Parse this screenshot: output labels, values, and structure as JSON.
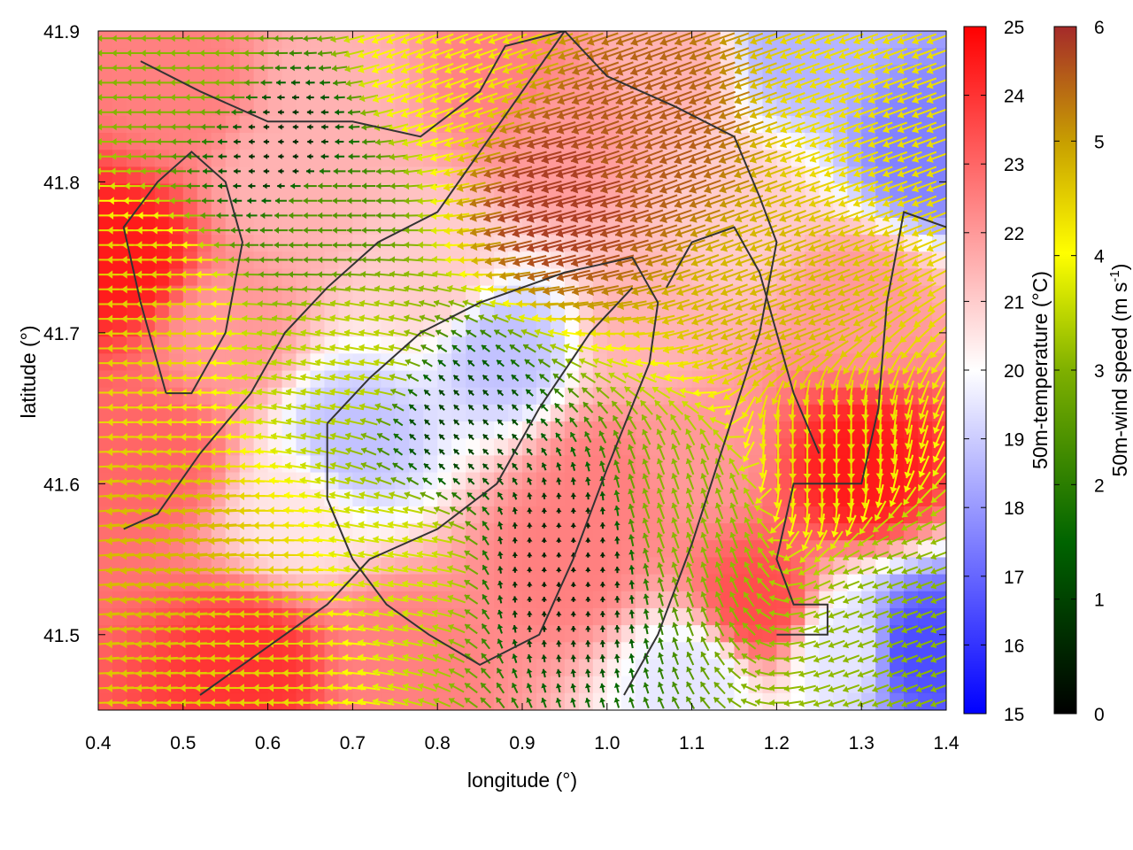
{
  "chart_data": {
    "type": "heatmap",
    "description_overlay": "wind vectors colored by speed, coastline contours",
    "xlabel": "longitude (°)",
    "ylabel": "latitude (°)",
    "xlim": [
      0.4,
      1.4
    ],
    "ylim": [
      41.45,
      41.9
    ],
    "x_ticks": [
      "0.4",
      "0.5",
      "0.6",
      "0.7",
      "0.8",
      "0.9",
      "1.0",
      "1.1",
      "1.2",
      "1.3",
      "1.4"
    ],
    "y_ticks": [
      "41.5",
      "41.6",
      "41.7",
      "41.8",
      "41.9"
    ],
    "x_tick_values": [
      0.4,
      0.5,
      0.6,
      0.7,
      0.8,
      0.9,
      1.0,
      1.1,
      1.2,
      1.3,
      1.4
    ],
    "y_tick_values": [
      41.5,
      41.6,
      41.7,
      41.8,
      41.9
    ],
    "grid": false,
    "temperature_colorbar": {
      "label": "50m-temperature (°C)",
      "range": [
        15,
        25
      ],
      "ticks": [
        "15",
        "16",
        "17",
        "18",
        "19",
        "20",
        "21",
        "22",
        "23",
        "24",
        "25"
      ],
      "tick_values": [
        15,
        16,
        17,
        18,
        19,
        20,
        21,
        22,
        23,
        24,
        25
      ],
      "colors": [
        "#0000ff",
        "#ffffff",
        "#ff0000"
      ]
    },
    "wind_colorbar": {
      "label_main": "50m-wind speed (m s",
      "label_sup": "-1",
      "label_end": ")",
      "range": [
        0,
        6
      ],
      "ticks": [
        "0",
        "1",
        "2",
        "3",
        "4",
        "5",
        "6"
      ],
      "tick_values": [
        0,
        1,
        2,
        3,
        4,
        5,
        6
      ],
      "colors": [
        "#000000",
        "#006400",
        "#7fb000",
        "#ffff00",
        "#c8a000",
        "#a52a2a"
      ]
    },
    "temperature_field_points": [
      {
        "lon": 0.43,
        "lat": 41.75,
        "t": 24.5
      },
      {
        "lon": 0.47,
        "lat": 41.62,
        "t": 23.0
      },
      {
        "lon": 0.62,
        "lat": 41.8,
        "t": 21.5
      },
      {
        "lon": 0.68,
        "lat": 41.86,
        "t": 21.5
      },
      {
        "lon": 0.88,
        "lat": 41.87,
        "t": 22.5
      },
      {
        "lon": 0.95,
        "lat": 41.83,
        "t": 22.0
      },
      {
        "lon": 1.08,
        "lat": 41.88,
        "t": 21.5
      },
      {
        "lon": 1.22,
        "lat": 41.89,
        "t": 18.5
      },
      {
        "lon": 1.38,
        "lat": 41.82,
        "t": 17.5
      },
      {
        "lon": 1.15,
        "lat": 41.78,
        "t": 21.0
      },
      {
        "lon": 0.8,
        "lat": 41.74,
        "t": 21.0
      },
      {
        "lon": 0.88,
        "lat": 41.69,
        "t": 18.8
      },
      {
        "lon": 0.7,
        "lat": 41.63,
        "t": 18.8
      },
      {
        "lon": 0.63,
        "lat": 41.58,
        "t": 20.5
      },
      {
        "lon": 0.95,
        "lat": 41.55,
        "t": 22.5
      },
      {
        "lon": 1.0,
        "lat": 41.6,
        "t": 22.5
      },
      {
        "lon": 1.1,
        "lat": 41.62,
        "t": 22.0
      },
      {
        "lon": 1.3,
        "lat": 41.61,
        "t": 24.5
      },
      {
        "lon": 1.18,
        "lat": 41.52,
        "t": 23.5
      },
      {
        "lon": 1.28,
        "lat": 41.49,
        "t": 19.5
      },
      {
        "lon": 1.37,
        "lat": 41.49,
        "t": 16.5
      },
      {
        "lon": 0.58,
        "lat": 41.48,
        "t": 24.0
      },
      {
        "lon": 0.75,
        "lat": 41.48,
        "t": 22.5
      },
      {
        "lon": 1.1,
        "lat": 41.47,
        "t": 19.5
      },
      {
        "lon": 1.3,
        "lat": 41.72,
        "t": 22.0
      },
      {
        "lon": 1.05,
        "lat": 41.7,
        "t": 21.5
      },
      {
        "lon": 0.55,
        "lat": 41.7,
        "t": 22.0
      },
      {
        "lon": 0.5,
        "lat": 41.86,
        "t": 22.5
      }
    ],
    "wind_field_points": [
      {
        "lon": 0.45,
        "lat": 41.72,
        "speed": 4.2,
        "dir_deg": 180
      },
      {
        "lon": 0.62,
        "lat": 41.82,
        "speed": 0.5,
        "dir_deg": 180
      },
      {
        "lon": 0.66,
        "lat": 41.78,
        "speed": 2.0,
        "dir_deg": 180
      },
      {
        "lon": 0.7,
        "lat": 41.68,
        "speed": 3.0,
        "dir_deg": 170
      },
      {
        "lon": 0.82,
        "lat": 41.64,
        "speed": 0.8,
        "dir_deg": 135
      },
      {
        "lon": 0.95,
        "lat": 41.55,
        "speed": 0.4,
        "dir_deg": 90
      },
      {
        "lon": 0.95,
        "lat": 41.79,
        "speed": 5.8,
        "dir_deg": 195
      },
      {
        "lon": 1.05,
        "lat": 41.83,
        "speed": 5.5,
        "dir_deg": 200
      },
      {
        "lon": 1.3,
        "lat": 41.85,
        "speed": 4.0,
        "dir_deg": 200
      },
      {
        "lon": 1.2,
        "lat": 41.72,
        "speed": 4.5,
        "dir_deg": 200
      },
      {
        "lon": 0.5,
        "lat": 41.55,
        "speed": 4.5,
        "dir_deg": 185
      },
      {
        "lon": 0.6,
        "lat": 41.52,
        "speed": 4.2,
        "dir_deg": 180
      },
      {
        "lon": 0.75,
        "lat": 41.55,
        "speed": 3.2,
        "dir_deg": 170
      },
      {
        "lon": 1.25,
        "lat": 41.62,
        "speed": 4.0,
        "dir_deg": 270
      },
      {
        "lon": 1.1,
        "lat": 41.58,
        "speed": 2.5,
        "dir_deg": 110
      },
      {
        "lon": 1.35,
        "lat": 41.52,
        "speed": 2.5,
        "dir_deg": 200
      },
      {
        "lon": 0.8,
        "lat": 41.88,
        "speed": 3.8,
        "dir_deg": 200
      },
      {
        "lon": 0.52,
        "lat": 41.88,
        "speed": 2.5,
        "dir_deg": 180
      }
    ],
    "contours": [
      [
        [
          0.67,
          41.64
        ],
        [
          0.72,
          41.67
        ],
        [
          0.78,
          41.7
        ],
        [
          0.85,
          41.72
        ],
        [
          0.95,
          41.74
        ],
        [
          1.03,
          41.75
        ],
        [
          1.06,
          41.72
        ],
        [
          1.05,
          41.68
        ],
        [
          1.0,
          41.61
        ],
        [
          0.96,
          41.55
        ],
        [
          0.92,
          41.5
        ],
        [
          0.85,
          41.48
        ],
        [
          0.79,
          41.5
        ],
        [
          0.74,
          41.52
        ],
        [
          0.7,
          41.55
        ],
        [
          0.67,
          41.59
        ],
        [
          0.67,
          41.64
        ]
      ],
      [
        [
          0.45,
          41.88
        ],
        [
          0.52,
          41.86
        ],
        [
          0.6,
          41.84
        ],
        [
          0.7,
          41.84
        ],
        [
          0.78,
          41.83
        ],
        [
          0.85,
          41.86
        ],
        [
          0.88,
          41.89
        ],
        [
          0.95,
          41.9
        ]
      ],
      [
        [
          0.95,
          41.9
        ],
        [
          1.0,
          41.87
        ],
        [
          1.08,
          41.85
        ],
        [
          1.15,
          41.83
        ],
        [
          1.18,
          41.79
        ],
        [
          1.2,
          41.76
        ],
        [
          1.18,
          41.7
        ],
        [
          1.14,
          41.63
        ],
        [
          1.1,
          41.56
        ],
        [
          1.06,
          41.5
        ],
        [
          1.02,
          41.46
        ]
      ],
      [
        [
          1.4,
          41.77
        ],
        [
          1.35,
          41.78
        ],
        [
          1.33,
          41.72
        ],
        [
          1.32,
          41.65
        ],
        [
          1.3,
          41.6
        ],
        [
          1.22,
          41.6
        ],
        [
          1.2,
          41.55
        ],
        [
          1.22,
          41.52
        ],
        [
          1.26,
          41.52
        ],
        [
          1.26,
          41.5
        ],
        [
          1.2,
          41.5
        ]
      ],
      [
        [
          0.43,
          41.57
        ],
        [
          0.47,
          41.58
        ],
        [
          0.52,
          41.62
        ],
        [
          0.58,
          41.66
        ],
        [
          0.62,
          41.7
        ],
        [
          0.67,
          41.73
        ],
        [
          0.73,
          41.76
        ],
        [
          0.8,
          41.78
        ],
        [
          0.85,
          41.82
        ],
        [
          0.9,
          41.86
        ],
        [
          0.95,
          41.9
        ]
      ],
      [
        [
          0.52,
          41.46
        ],
        [
          0.57,
          41.48
        ],
        [
          0.62,
          41.5
        ],
        [
          0.67,
          41.52
        ],
        [
          0.72,
          41.55
        ],
        [
          0.76,
          41.56
        ],
        [
          0.8,
          41.57
        ],
        [
          0.87,
          41.6
        ],
        [
          0.92,
          41.65
        ],
        [
          0.98,
          41.7
        ],
        [
          1.03,
          41.73
        ]
      ],
      [
        [
          0.48,
          41.66
        ],
        [
          0.45,
          41.72
        ],
        [
          0.43,
          41.77
        ],
        [
          0.47,
          41.8
        ],
        [
          0.51,
          41.82
        ],
        [
          0.55,
          41.8
        ],
        [
          0.57,
          41.76
        ],
        [
          0.55,
          41.7
        ],
        [
          0.51,
          41.66
        ],
        [
          0.48,
          41.66
        ]
      ],
      [
        [
          1.07,
          41.73
        ],
        [
          1.1,
          41.76
        ],
        [
          1.15,
          41.77
        ],
        [
          1.18,
          41.74
        ],
        [
          1.2,
          41.7
        ],
        [
          1.22,
          41.66
        ],
        [
          1.25,
          41.62
        ]
      ]
    ]
  }
}
